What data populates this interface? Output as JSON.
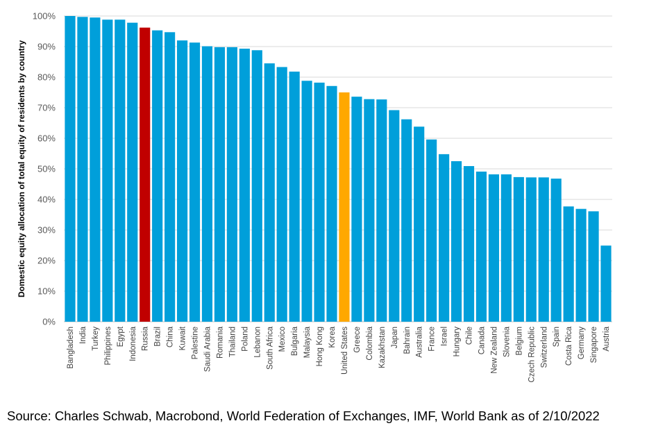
{
  "chart_data": {
    "type": "bar",
    "ylabel": "Domestic equity allocation of total equity of residents by country",
    "ylim": [
      0,
      100
    ],
    "yticks": [
      0,
      10,
      20,
      30,
      40,
      50,
      60,
      70,
      80,
      90,
      100
    ],
    "ytick_labels": [
      "0%",
      "10%",
      "20%",
      "30%",
      "40%",
      "50%",
      "60%",
      "70%",
      "80%",
      "90%",
      "100%"
    ],
    "grid": true,
    "categories": [
      "Bangladesh",
      "India",
      "Turkey",
      "Philippines",
      "Egypt",
      "Indonesia",
      "Russia",
      "Brazil",
      "China",
      "Kuwait",
      "Palestine",
      "Saudi Arabia",
      "Romania",
      "Thailand",
      "Poland",
      "Lebanon",
      "South Africa",
      "Mexico",
      "Bulgaria",
      "Malaysia",
      "Hong Kong",
      "Korea",
      "United States",
      "Greece",
      "Colombia",
      "Kazakhstan",
      "Japan",
      "Bahrain",
      "Australia",
      "France",
      "Israel",
      "Hungary",
      "Chile",
      "Canada",
      "New Zealand",
      "Slovenia",
      "Belgium",
      "Czech Republic",
      "Switzerland",
      "Spain",
      "Costa Rica",
      "Germany",
      "Singapore",
      "Austria"
    ],
    "values": [
      100,
      99.7,
      99.5,
      98.8,
      98.8,
      97.8,
      96.2,
      95.3,
      94.7,
      92.0,
      91.3,
      90.1,
      89.8,
      89.8,
      89.3,
      88.8,
      84.5,
      83.3,
      81.8,
      78.8,
      78.2,
      77.1,
      75.0,
      73.6,
      72.8,
      72.7,
      69.2,
      66.2,
      63.8,
      59.6,
      54.8,
      52.5,
      50.9,
      49.1,
      48.2,
      48.2,
      47.3,
      47.2,
      47.2,
      46.8,
      37.7,
      36.9,
      36.1,
      24.9
    ],
    "colors": {
      "default": "#009fda",
      "highlight_russia": "#c00000",
      "highlight_us": "#ffa800",
      "grid": "#d9d9d9",
      "axis": "#bfbfbf"
    },
    "highlights": {
      "Russia": "#c00000",
      "United States": "#ffa800"
    }
  },
  "source": "Source: Charles Schwab, Macrobond, World Federation of Exchanges, IMF, World Bank as of 2/10/2022"
}
